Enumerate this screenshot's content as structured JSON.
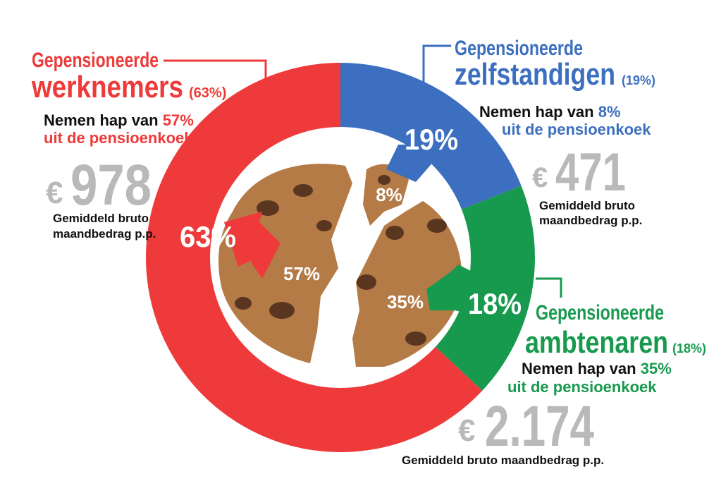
{
  "chart_data": {
    "type": "donut",
    "categories": [
      "zelfstandigen",
      "ambtenaren",
      "werknemers"
    ],
    "values": [
      19,
      18,
      63
    ],
    "value_labels": [
      "19%",
      "18%",
      "63%"
    ],
    "colors": [
      "#3c6fbf",
      "#189a4e",
      "#ee3a3a"
    ],
    "callouts": [
      {
        "heading": "Gepensioneerde",
        "share_label": "(19%)",
        "bite_text": "Nemen hap van",
        "bite_label": "8%",
        "bite_suffix": "uit de pensioenkoek",
        "currency": "€",
        "amount_label": "471",
        "amount_note": [
          "Gemiddeld bruto",
          "maandbedrag p.p."
        ]
      },
      {
        "heading": "Gepensioneerde",
        "share_label": "(18%)",
        "bite_text": "Nemen hap van",
        "bite_label": "35%",
        "bite_suffix": "uit de pensioenkoek",
        "currency": "€",
        "amount_label": "2.174",
        "amount_note": [
          "Gemiddeld bruto maandbedrag p.p."
        ]
      },
      {
        "heading": "Gepensioneerde",
        "share_label": "(63%)",
        "bite_text": "Nemen hap van",
        "bite_label": "57%",
        "bite_suffix": "uit de pensioenkoek",
        "currency": "€",
        "amount_label": "978",
        "amount_note": [
          "Gemiddeld bruto",
          "maandbedrag p.p."
        ]
      }
    ]
  }
}
